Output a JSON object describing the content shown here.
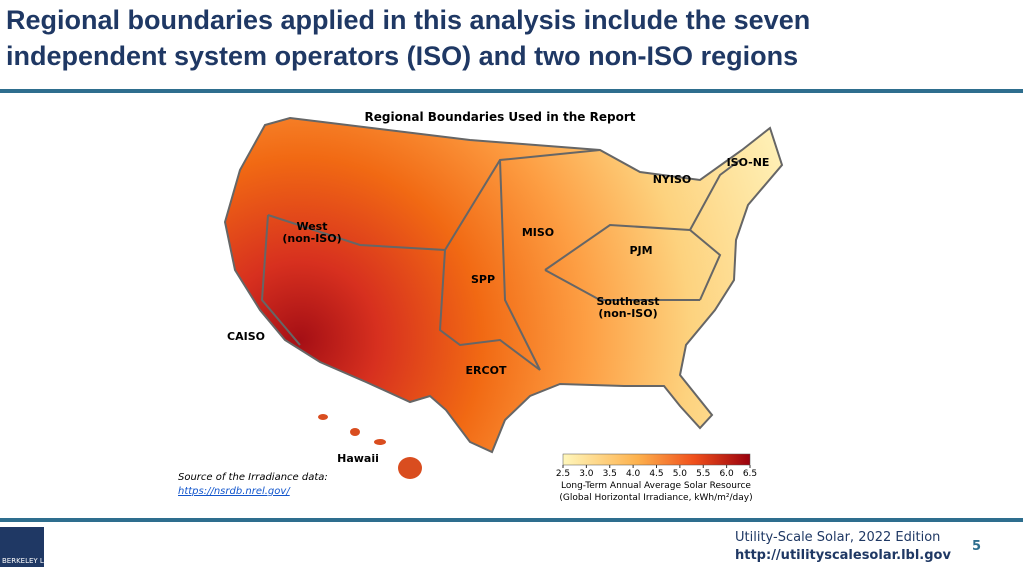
{
  "header": {
    "title_lines": [
      "Regional boundaries applied in this analysis include the seven",
      "independent system operators (ISO) and two non-ISO regions"
    ]
  },
  "map": {
    "title": "Regional Boundaries Used in the Report",
    "regions": [
      {
        "lines": [
          "West",
          "(non-ISO)"
        ]
      },
      {
        "lines": [
          "CAISO"
        ]
      },
      {
        "lines": [
          "SPP"
        ]
      },
      {
        "lines": [
          "MISO"
        ]
      },
      {
        "lines": [
          "ERCOT"
        ]
      },
      {
        "lines": [
          "PJM"
        ]
      },
      {
        "lines": [
          "NYISO"
        ]
      },
      {
        "lines": [
          "ISO-NE"
        ]
      },
      {
        "lines": [
          "Southeast",
          "(non-ISO)"
        ]
      },
      {
        "lines": [
          "Hawaii"
        ]
      }
    ],
    "colorbar": {
      "lim": [
        2.5,
        6.5
      ],
      "ticks": [
        2.5,
        {
          "value": 3,
          "label": "3.0"
        },
        3.5,
        {
          "value": 4,
          "label": "4.0"
        },
        4.5,
        {
          "value": 5,
          "label": "5.0"
        },
        5.5,
        {
          "value": 6,
          "label": "6.0"
        },
        6.5
      ],
      "label_lines": [
        "Long-Term Annual Average Solar Resource",
        "(Global Horizontal Irradiance, kWh/m²/day)"
      ]
    }
  },
  "source": {
    "label": "Source of the Irradiance data:",
    "link": "https://nsrdb.nrel.gov/"
  },
  "footer": {
    "edition": "Utility-Scale Solar, 2022 Edition",
    "url": "http://utilityscalesolar.lbl.gov",
    "page": "5",
    "logo": "BERKELEY LAB"
  }
}
